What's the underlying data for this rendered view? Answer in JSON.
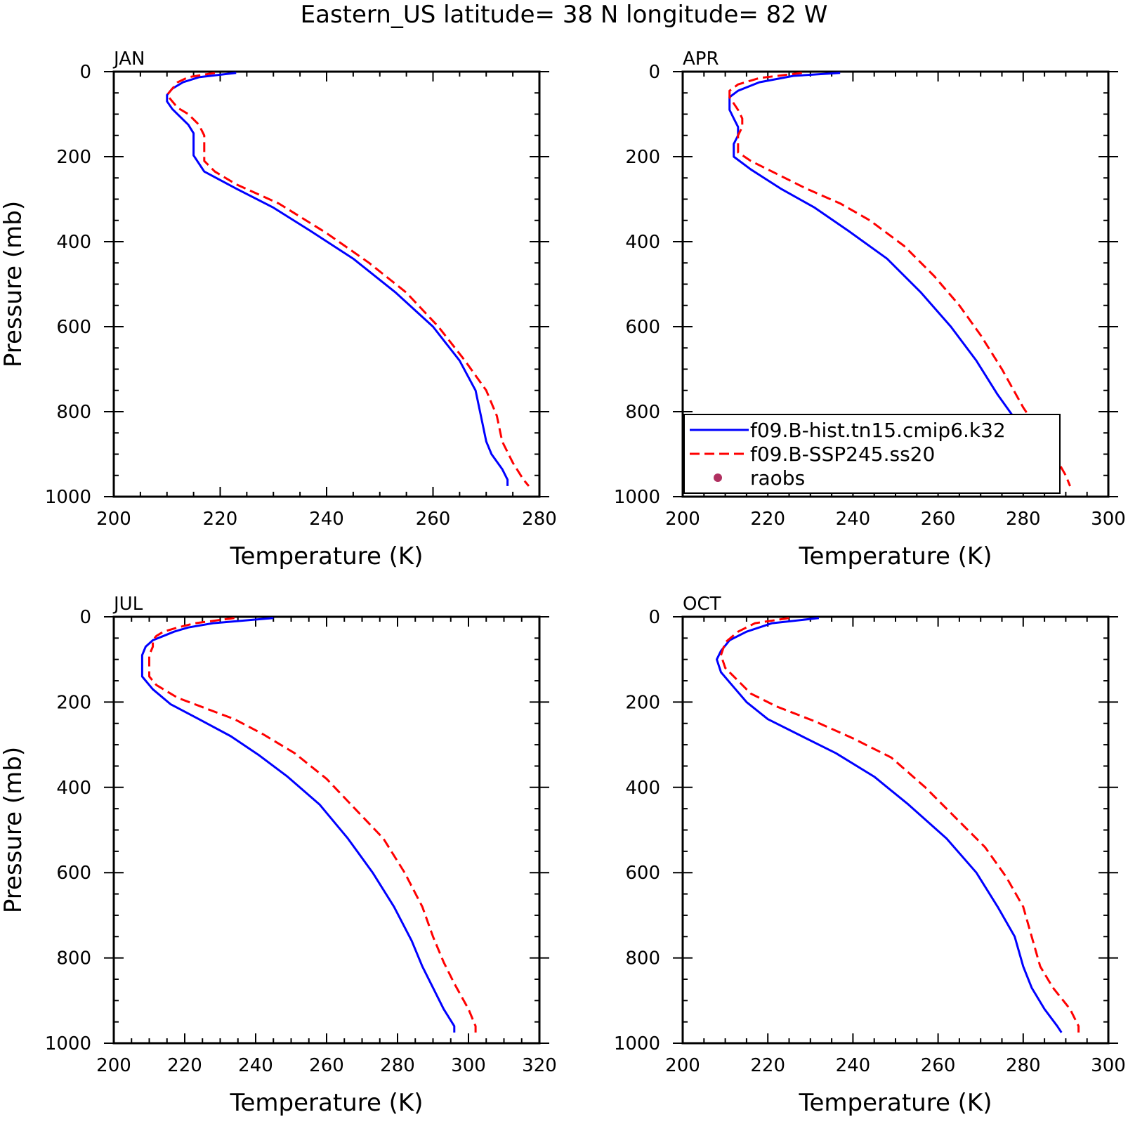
{
  "figure": {
    "title": "Eastern_US  latitude= 38 N longitude= 82 W"
  },
  "legend": {
    "placement": "bottom-left of APR panel",
    "entries": [
      {
        "label": "f09.B-hist.tn15.cmip6.k32",
        "color": "#0000ff",
        "style": "solid"
      },
      {
        "label": "f09.B-SSP245.ss20",
        "color": "#ff0000",
        "style": "dashed"
      },
      {
        "label": "raobs",
        "color": "#b03060",
        "style": "marker"
      }
    ]
  },
  "chart_data": [
    {
      "type": "line",
      "title": "JAN",
      "xlabel": "Temperature (K)",
      "ylabel": "Pressure (mb)",
      "xlim": [
        200,
        280
      ],
      "ylim": [
        1000,
        0
      ],
      "xticks": [
        200,
        220,
        240,
        260,
        280
      ],
      "yticks": [
        0,
        200,
        400,
        600,
        800,
        1000
      ],
      "grid": false,
      "series": [
        {
          "name": "f09.B-hist.tn15.cmip6.k32",
          "color": "#0000ff",
          "dash": false,
          "x": [
            223,
            216,
            213,
            211,
            210,
            210,
            211,
            214,
            215,
            215,
            217,
            223,
            230,
            237,
            245,
            253,
            260,
            265,
            268,
            269,
            270,
            271,
            273,
            274,
            274
          ],
          "y": [
            3,
            13,
            25,
            40,
            55,
            70,
            88,
            125,
            145,
            197,
            235,
            275,
            320,
            375,
            440,
            520,
            600,
            680,
            750,
            810,
            870,
            900,
            935,
            960,
            975
          ]
        },
        {
          "name": "f09.B-SSP245.ss20",
          "color": "#ff0000",
          "dash": true,
          "x": [
            219,
            214,
            212,
            211,
            210,
            211,
            212,
            214,
            216,
            217,
            217,
            217,
            219,
            223,
            231,
            240,
            248,
            255,
            261,
            266,
            270,
            272,
            273,
            275,
            277,
            278
          ],
          "y": [
            3,
            13,
            25,
            40,
            55,
            70,
            85,
            100,
            125,
            150,
            197,
            210,
            235,
            265,
            310,
            380,
            450,
            520,
            600,
            680,
            750,
            810,
            870,
            920,
            960,
            975
          ]
        }
      ]
    },
    {
      "type": "line",
      "title": "APR",
      "xlabel": "Temperature (K)",
      "ylabel": "",
      "xlim": [
        200,
        300
      ],
      "ylim": [
        1000,
        0
      ],
      "xticks": [
        200,
        220,
        240,
        260,
        280,
        300
      ],
      "yticks": [
        0,
        200,
        400,
        600,
        800,
        1000
      ],
      "grid": false,
      "series": [
        {
          "name": "f09.B-hist.tn15.cmip6.k32",
          "color": "#0000ff",
          "dash": false,
          "x": [
            237,
            226,
            218,
            213,
            211,
            211,
            212,
            213,
            213,
            212,
            212,
            212,
            216,
            223,
            231,
            239,
            248,
            256,
            263,
            269,
            274,
            279,
            283,
            287,
            287
          ],
          "y": [
            3,
            10,
            25,
            45,
            60,
            90,
            110,
            130,
            150,
            170,
            190,
            200,
            230,
            275,
            320,
            375,
            440,
            520,
            600,
            680,
            760,
            830,
            890,
            950,
            975
          ]
        },
        {
          "name": "f09.B-SSP245.ss20",
          "color": "#ff0000",
          "dash": true,
          "x": [
            228,
            218,
            213,
            211,
            211,
            213,
            214,
            214,
            213,
            213,
            213,
            216,
            222,
            229,
            237,
            244,
            252,
            259,
            265,
            270,
            275,
            280,
            286,
            290,
            291
          ],
          "y": [
            3,
            15,
            30,
            45,
            60,
            90,
            110,
            130,
            150,
            170,
            190,
            210,
            240,
            275,
            310,
            350,
            410,
            480,
            550,
            620,
            700,
            790,
            880,
            950,
            975
          ]
        }
      ]
    },
    {
      "type": "line",
      "title": "JUL",
      "xlabel": "Temperature (K)",
      "ylabel": "Pressure (mb)",
      "xlim": [
        200,
        320
      ],
      "ylim": [
        1000,
        0
      ],
      "xticks": [
        200,
        220,
        240,
        260,
        280,
        300,
        320
      ],
      "yticks": [
        0,
        200,
        400,
        600,
        800,
        1000
      ],
      "grid": false,
      "series": [
        {
          "name": "f09.B-hist.tn15.cmip6.k32",
          "color": "#0000ff",
          "dash": false,
          "x": [
            245,
            228,
            221,
            217,
            214,
            211,
            209,
            208,
            208,
            208,
            211,
            216,
            224,
            233,
            241,
            249,
            258,
            266,
            273,
            279,
            284,
            287,
            290,
            293,
            296,
            296
          ],
          "y": [
            3,
            15,
            25,
            35,
            45,
            55,
            70,
            90,
            120,
            140,
            170,
            205,
            240,
            280,
            325,
            375,
            440,
            520,
            600,
            680,
            760,
            820,
            870,
            920,
            960,
            975
          ]
        },
        {
          "name": "f09.B-SSP245.ss20",
          "color": "#ff0000",
          "dash": true,
          "x": [
            234,
            223,
            218,
            214,
            212,
            211,
            211,
            210,
            210,
            210,
            212,
            218,
            226,
            234,
            242,
            251,
            260,
            268,
            276,
            282,
            287,
            290,
            293,
            296,
            300,
            302,
            302
          ],
          "y": [
            3,
            15,
            25,
            35,
            45,
            55,
            70,
            90,
            120,
            140,
            160,
            190,
            215,
            240,
            275,
            320,
            380,
            450,
            520,
            600,
            680,
            750,
            810,
            860,
            920,
            960,
            975
          ]
        }
      ]
    },
    {
      "type": "line",
      "title": "OCT",
      "xlabel": "Temperature (K)",
      "ylabel": "",
      "xlim": [
        200,
        300
      ],
      "ylim": [
        1000,
        0
      ],
      "xticks": [
        200,
        220,
        240,
        260,
        280,
        300
      ],
      "yticks": [
        0,
        200,
        400,
        600,
        800,
        1000
      ],
      "grid": false,
      "series": [
        {
          "name": "f09.B-hist.tn15.cmip6.k32",
          "color": "#0000ff",
          "dash": false,
          "x": [
            232,
            221,
            215,
            211,
            209,
            208,
            209,
            212,
            215,
            220,
            228,
            236,
            245,
            253,
            262,
            269,
            274,
            278,
            280,
            282,
            285,
            288,
            289
          ],
          "y": [
            3,
            15,
            35,
            55,
            80,
            100,
            130,
            165,
            200,
            240,
            280,
            320,
            375,
            440,
            520,
            600,
            680,
            750,
            820,
            870,
            920,
            960,
            975
          ]
        },
        {
          "name": "f09.B-SSP245.ss20",
          "color": "#ff0000",
          "dash": true,
          "x": [
            225,
            217,
            213,
            210,
            209,
            210,
            213,
            216,
            222,
            231,
            240,
            249,
            257,
            264,
            271,
            276,
            280,
            282,
            284,
            287,
            291,
            293,
            293
          ],
          "y": [
            3,
            15,
            35,
            60,
            90,
            120,
            150,
            180,
            210,
            245,
            285,
            330,
            400,
            470,
            540,
            610,
            680,
            750,
            820,
            870,
            920,
            960,
            975
          ]
        }
      ]
    }
  ]
}
